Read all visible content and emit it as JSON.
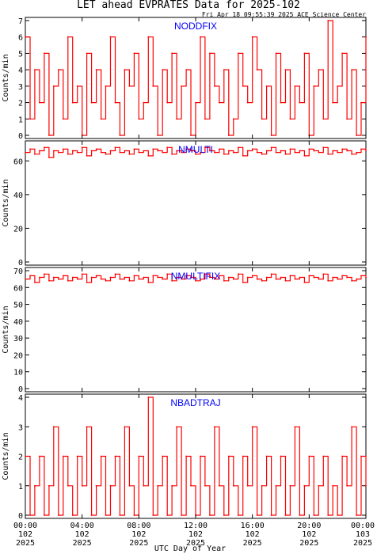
{
  "title": "LET ahead EVPRATES Data for 2025-102",
  "timestamp": "Fri Apr 18 09:55:39 2025 ACE Science Center",
  "xlabel": "UTC Day of Year",
  "colors": {
    "line": "#ff0000",
    "panel_label": "#0000ff",
    "axis": "#000000"
  },
  "chart_data": [
    {
      "type": "line",
      "title": "NODDFIX",
      "ylabel": "Counts/min",
      "ylim": [
        0,
        7
      ],
      "yticks": [
        "0",
        "1",
        "2",
        "3",
        "4",
        "5",
        "6",
        "7"
      ],
      "xlim": [
        0,
        1440
      ],
      "series": [
        {
          "x": [
            0,
            20,
            40,
            60,
            80,
            100,
            120,
            140,
            160,
            180,
            200,
            220,
            240,
            260,
            280,
            300,
            320,
            340,
            360,
            380,
            400,
            420,
            440,
            460,
            480,
            500,
            520,
            540,
            560,
            580,
            600,
            620,
            640,
            660,
            680,
            700,
            720,
            740,
            760,
            780,
            800,
            820,
            840,
            860,
            880,
            900,
            920,
            940,
            960,
            980,
            1000,
            1020,
            1040,
            1060,
            1080,
            1100,
            1120,
            1140,
            1160,
            1180,
            1200,
            1220,
            1240,
            1260,
            1280,
            1300,
            1320,
            1340,
            1360,
            1380,
            1400,
            1420,
            1440
          ],
          "values": [
            6,
            1,
            4,
            2,
            5,
            0,
            3,
            4,
            1,
            6,
            2,
            3,
            0,
            5,
            2,
            4,
            1,
            3,
            6,
            2,
            0,
            4,
            3,
            5,
            1,
            2,
            6,
            3,
            0,
            4,
            2,
            5,
            1,
            3,
            4,
            0,
            2,
            6,
            1,
            5,
            3,
            2,
            4,
            0,
            1,
            5,
            3,
            2,
            6,
            4,
            1,
            3,
            0,
            5,
            2,
            4,
            1,
            3,
            2,
            5,
            0,
            3,
            4,
            1,
            7,
            2,
            3,
            5,
            1,
            4,
            0,
            2,
            6
          ]
        }
      ]
    },
    {
      "type": "line",
      "title": "NMULTI",
      "ylabel": "Counts/min",
      "ylim": [
        0,
        70
      ],
      "yticks": [
        "0",
        "20",
        "40",
        "60"
      ],
      "xlim": [
        0,
        1440
      ],
      "series": [
        {
          "x": [
            0,
            20,
            40,
            60,
            80,
            100,
            120,
            140,
            160,
            180,
            200,
            220,
            240,
            260,
            280,
            300,
            320,
            340,
            360,
            380,
            400,
            420,
            440,
            460,
            480,
            500,
            520,
            540,
            560,
            580,
            600,
            620,
            640,
            660,
            680,
            700,
            720,
            740,
            760,
            780,
            800,
            820,
            840,
            860,
            880,
            900,
            920,
            940,
            960,
            980,
            1000,
            1020,
            1040,
            1060,
            1080,
            1100,
            1120,
            1140,
            1160,
            1180,
            1200,
            1220,
            1240,
            1260,
            1280,
            1300,
            1320,
            1340,
            1360,
            1380,
            1400,
            1420,
            1440
          ],
          "values": [
            65,
            67,
            64,
            66,
            68,
            62,
            66,
            65,
            67,
            64,
            66,
            65,
            68,
            63,
            66,
            67,
            65,
            64,
            66,
            68,
            65,
            66,
            64,
            67,
            65,
            66,
            63,
            67,
            66,
            65,
            68,
            64,
            66,
            65,
            67,
            66,
            64,
            65,
            68,
            66,
            65,
            67,
            64,
            66,
            65,
            68,
            63,
            66,
            67,
            65,
            64,
            66,
            68,
            65,
            66,
            64,
            67,
            65,
            66,
            63,
            67,
            66,
            65,
            68,
            64,
            66,
            65,
            67,
            66,
            64,
            65,
            67,
            66
          ]
        }
      ]
    },
    {
      "type": "line",
      "title": "NMULTIFIX",
      "ylabel": "Counts/min",
      "ylim": [
        0,
        70
      ],
      "yticks": [
        "0",
        "10",
        "20",
        "30",
        "40",
        "50",
        "60",
        "70"
      ],
      "xlim": [
        0,
        1440
      ],
      "series": [
        {
          "x": [
            0,
            20,
            40,
            60,
            80,
            100,
            120,
            140,
            160,
            180,
            200,
            220,
            240,
            260,
            280,
            300,
            320,
            340,
            360,
            380,
            400,
            420,
            440,
            460,
            480,
            500,
            520,
            540,
            560,
            580,
            600,
            620,
            640,
            660,
            680,
            700,
            720,
            740,
            760,
            780,
            800,
            820,
            840,
            860,
            880,
            900,
            920,
            940,
            960,
            980,
            1000,
            1020,
            1040,
            1060,
            1080,
            1100,
            1120,
            1140,
            1160,
            1180,
            1200,
            1220,
            1240,
            1260,
            1280,
            1300,
            1320,
            1340,
            1360,
            1380,
            1400,
            1420,
            1440
          ],
          "values": [
            65,
            67,
            63,
            66,
            68,
            64,
            66,
            65,
            67,
            64,
            66,
            65,
            68,
            63,
            66,
            67,
            65,
            64,
            66,
            68,
            65,
            66,
            64,
            67,
            65,
            66,
            63,
            67,
            66,
            65,
            68,
            64,
            66,
            65,
            67,
            66,
            64,
            65,
            68,
            66,
            65,
            67,
            64,
            66,
            65,
            68,
            63,
            66,
            67,
            65,
            64,
            66,
            68,
            65,
            66,
            64,
            67,
            65,
            66,
            63,
            67,
            66,
            65,
            68,
            64,
            66,
            65,
            67,
            66,
            64,
            65,
            67,
            66
          ]
        }
      ]
    },
    {
      "type": "line",
      "title": "NBADTRAJ",
      "ylabel": "Counts/min",
      "ylim": [
        0,
        4
      ],
      "yticks": [
        "0",
        "1",
        "2",
        "3",
        "4"
      ],
      "xlim": [
        0,
        1440
      ],
      "series": [
        {
          "x": [
            0,
            20,
            40,
            60,
            80,
            100,
            120,
            140,
            160,
            180,
            200,
            220,
            240,
            260,
            280,
            300,
            320,
            340,
            360,
            380,
            400,
            420,
            440,
            460,
            480,
            500,
            520,
            540,
            560,
            580,
            600,
            620,
            640,
            660,
            680,
            700,
            720,
            740,
            760,
            780,
            800,
            820,
            840,
            860,
            880,
            900,
            920,
            940,
            960,
            980,
            1000,
            1020,
            1040,
            1060,
            1080,
            1100,
            1120,
            1140,
            1160,
            1180,
            1200,
            1220,
            1240,
            1260,
            1280,
            1300,
            1320,
            1340,
            1360,
            1380,
            1400,
            1420,
            1440
          ],
          "values": [
            2,
            0,
            1,
            2,
            0,
            1,
            3,
            0,
            2,
            1,
            0,
            2,
            1,
            3,
            0,
            1,
            2,
            0,
            1,
            2,
            0,
            3,
            1,
            0,
            2,
            1,
            4,
            0,
            1,
            2,
            0,
            1,
            3,
            0,
            2,
            1,
            0,
            2,
            1,
            0,
            3,
            1,
            0,
            2,
            1,
            0,
            2,
            1,
            3,
            0,
            1,
            2,
            0,
            1,
            2,
            0,
            1,
            3,
            0,
            1,
            2,
            0,
            1,
            2,
            0,
            1,
            0,
            2,
            1,
            3,
            0,
            2,
            1
          ]
        }
      ]
    }
  ],
  "xticks": [
    {
      "time": "00:00",
      "day": "102",
      "year": "2025"
    },
    {
      "time": "04:00",
      "day": "102",
      "year": "2025"
    },
    {
      "time": "08:00",
      "day": "102",
      "year": "2025"
    },
    {
      "time": "12:00",
      "day": "102",
      "year": "2025"
    },
    {
      "time": "16:00",
      "day": "102",
      "year": "2025"
    },
    {
      "time": "20:00",
      "day": "102",
      "year": "2025"
    },
    {
      "time": "00:00",
      "day": "103",
      "year": "2025"
    }
  ]
}
